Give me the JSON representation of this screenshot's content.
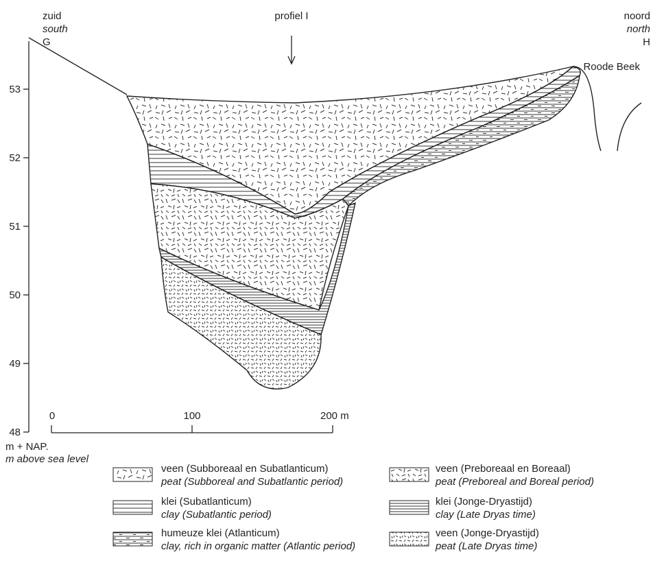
{
  "corners": {
    "left": {
      "nl": "zuid",
      "en": "south",
      "letter": "G"
    },
    "right": {
      "nl": "noord",
      "en": "north",
      "letter": "H"
    }
  },
  "profile_label": "profiel I",
  "place_label": "Roode Beek",
  "y_axis": {
    "ticks": [
      "53",
      "52",
      "51",
      "50",
      "49",
      "48"
    ],
    "unit_nl": "m + NAP.",
    "unit_en": "m above sea level"
  },
  "scale_bar": {
    "ticks": [
      "0",
      "100",
      "200 m"
    ]
  },
  "legend": [
    {
      "nl": "veen (Subboreaal en Subatlanticum)",
      "en": "peat (Subboreal and Subatlantic period)"
    },
    {
      "nl": "klei (Subatlanticum)",
      "en": "clay (Subatlantic period)"
    },
    {
      "nl": "humeuze klei (Atlanticum)",
      "en": "clay, rich in organic matter (Atlantic period)"
    },
    {
      "nl": "veen (Preboreaal en Boreaal)",
      "en": "peat (Preboreal and Boreal period)"
    },
    {
      "nl": "klei (Jonge-Dryastijd)",
      "en": "clay (Late Dryas time)"
    },
    {
      "nl": "veen (Jonge-Dryastijd)",
      "en": "peat (Late Dryas time)"
    }
  ]
}
